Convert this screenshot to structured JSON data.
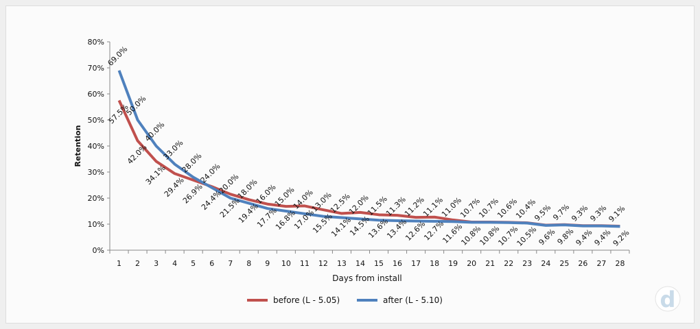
{
  "chart_data": {
    "type": "line",
    "title": "",
    "xlabel": "Days from install",
    "ylabel": "Retention",
    "x": [
      1,
      2,
      3,
      4,
      5,
      6,
      7,
      8,
      9,
      10,
      11,
      12,
      13,
      14,
      15,
      16,
      17,
      18,
      19,
      20,
      21,
      22,
      23,
      24,
      25,
      26,
      27,
      28
    ],
    "ylim": [
      0,
      80
    ],
    "yticks": [
      "0%",
      "10%",
      "20%",
      "30%",
      "40%",
      "50%",
      "60%",
      "70%",
      "80%"
    ],
    "legend_position": "bottom",
    "series": [
      {
        "name": "before (L - 5.05)",
        "color": "#c0504d",
        "values": [
          57.5,
          42.0,
          34.1,
          29.4,
          26.9,
          24.4,
          21.5,
          19.4,
          17.7,
          16.8,
          17.0,
          15.5,
          14.1,
          14.5,
          13.6,
          13.4,
          12.6,
          12.7,
          11.6,
          10.8,
          10.8,
          10.7,
          10.5,
          9.6,
          9.8,
          9.4,
          9.4,
          9.2
        ]
      },
      {
        "name": "after (L - 5.10)",
        "color": "#4f81bd",
        "values": [
          69.0,
          50.0,
          40.0,
          33.0,
          28.0,
          24.0,
          20.0,
          18.0,
          16.0,
          15.0,
          14.0,
          13.0,
          12.5,
          12.0,
          11.5,
          11.3,
          11.2,
          11.1,
          11.0,
          10.7,
          10.7,
          10.6,
          10.4,
          9.5,
          9.7,
          9.3,
          9.3,
          9.1
        ]
      }
    ]
  },
  "logo": {
    "letter": "d"
  }
}
